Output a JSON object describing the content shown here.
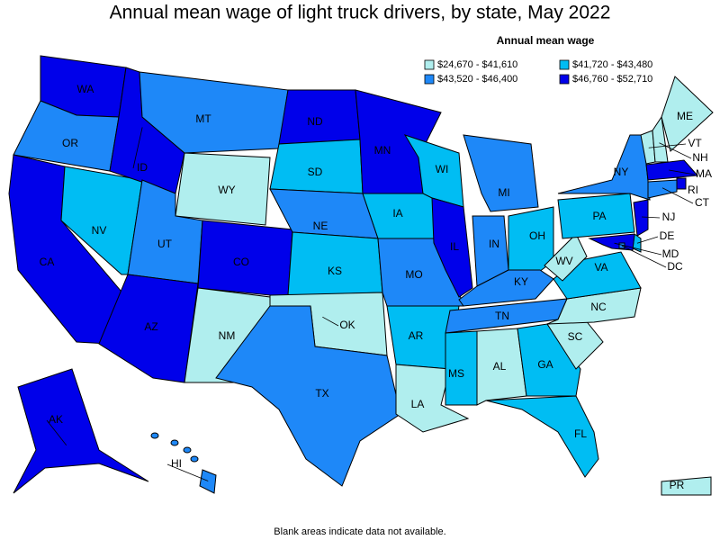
{
  "title": "Annual mean wage of light truck drivers, by state, May 2022",
  "legend": {
    "title": "Annual mean wage",
    "items": [
      {
        "label": "$24,670 - $41,610",
        "color": "#b0eeee"
      },
      {
        "label": "$41,720 - $43,480",
        "color": "#00bdf3"
      },
      {
        "label": "$43,520 - $46,400",
        "color": "#1e88f8"
      },
      {
        "label": "$46,760 - $52,710",
        "color": "#0000ea"
      }
    ]
  },
  "states": [
    {
      "label": "WA",
      "bin": 3
    },
    {
      "label": "OR",
      "bin": 2
    },
    {
      "label": "CA",
      "bin": 3
    },
    {
      "label": "NV",
      "bin": 1
    },
    {
      "label": "ID",
      "bin": 3
    },
    {
      "label": "MT",
      "bin": 2
    },
    {
      "label": "WY",
      "bin": 0
    },
    {
      "label": "UT",
      "bin": 2
    },
    {
      "label": "AZ",
      "bin": 3
    },
    {
      "label": "CO",
      "bin": 3
    },
    {
      "label": "NM",
      "bin": 0
    },
    {
      "label": "ND",
      "bin": 3
    },
    {
      "label": "SD",
      "bin": 1
    },
    {
      "label": "NE",
      "bin": 2
    },
    {
      "label": "KS",
      "bin": 1
    },
    {
      "label": "OK",
      "bin": 0
    },
    {
      "label": "TX",
      "bin": 2
    },
    {
      "label": "MN",
      "bin": 3
    },
    {
      "label": "IA",
      "bin": 1
    },
    {
      "label": "MO",
      "bin": 2
    },
    {
      "label": "AR",
      "bin": 1
    },
    {
      "label": "LA",
      "bin": 0
    },
    {
      "label": "WI",
      "bin": 1
    },
    {
      "label": "IL",
      "bin": 3
    },
    {
      "label": "MI",
      "bin": 2
    },
    {
      "label": "IN",
      "bin": 2
    },
    {
      "label": "OH",
      "bin": 1
    },
    {
      "label": "KY",
      "bin": 2
    },
    {
      "label": "TN",
      "bin": 2
    },
    {
      "label": "MS",
      "bin": 1
    },
    {
      "label": "AL",
      "bin": 0
    },
    {
      "label": "GA",
      "bin": 1
    },
    {
      "label": "FL",
      "bin": 1
    },
    {
      "label": "SC",
      "bin": 0
    },
    {
      "label": "NC",
      "bin": 0
    },
    {
      "label": "VA",
      "bin": 1
    },
    {
      "label": "WV",
      "bin": 0
    },
    {
      "label": "PA",
      "bin": 1
    },
    {
      "label": "NY",
      "bin": 2
    },
    {
      "label": "VT",
      "bin": 0
    },
    {
      "label": "NH",
      "bin": 0
    },
    {
      "label": "ME",
      "bin": 0
    },
    {
      "label": "MA",
      "bin": 3
    },
    {
      "label": "RI",
      "bin": 3
    },
    {
      "label": "CT",
      "bin": 2
    },
    {
      "label": "NJ",
      "bin": 3
    },
    {
      "label": "DE",
      "bin": 1
    },
    {
      "label": "MD",
      "bin": 3
    },
    {
      "label": "DC",
      "bin": 2
    },
    {
      "label": "AK",
      "bin": 3
    },
    {
      "label": "HI",
      "bin": 2
    },
    {
      "label": "PR",
      "bin": 0
    }
  ],
  "note": "Blank areas indicate data not available."
}
